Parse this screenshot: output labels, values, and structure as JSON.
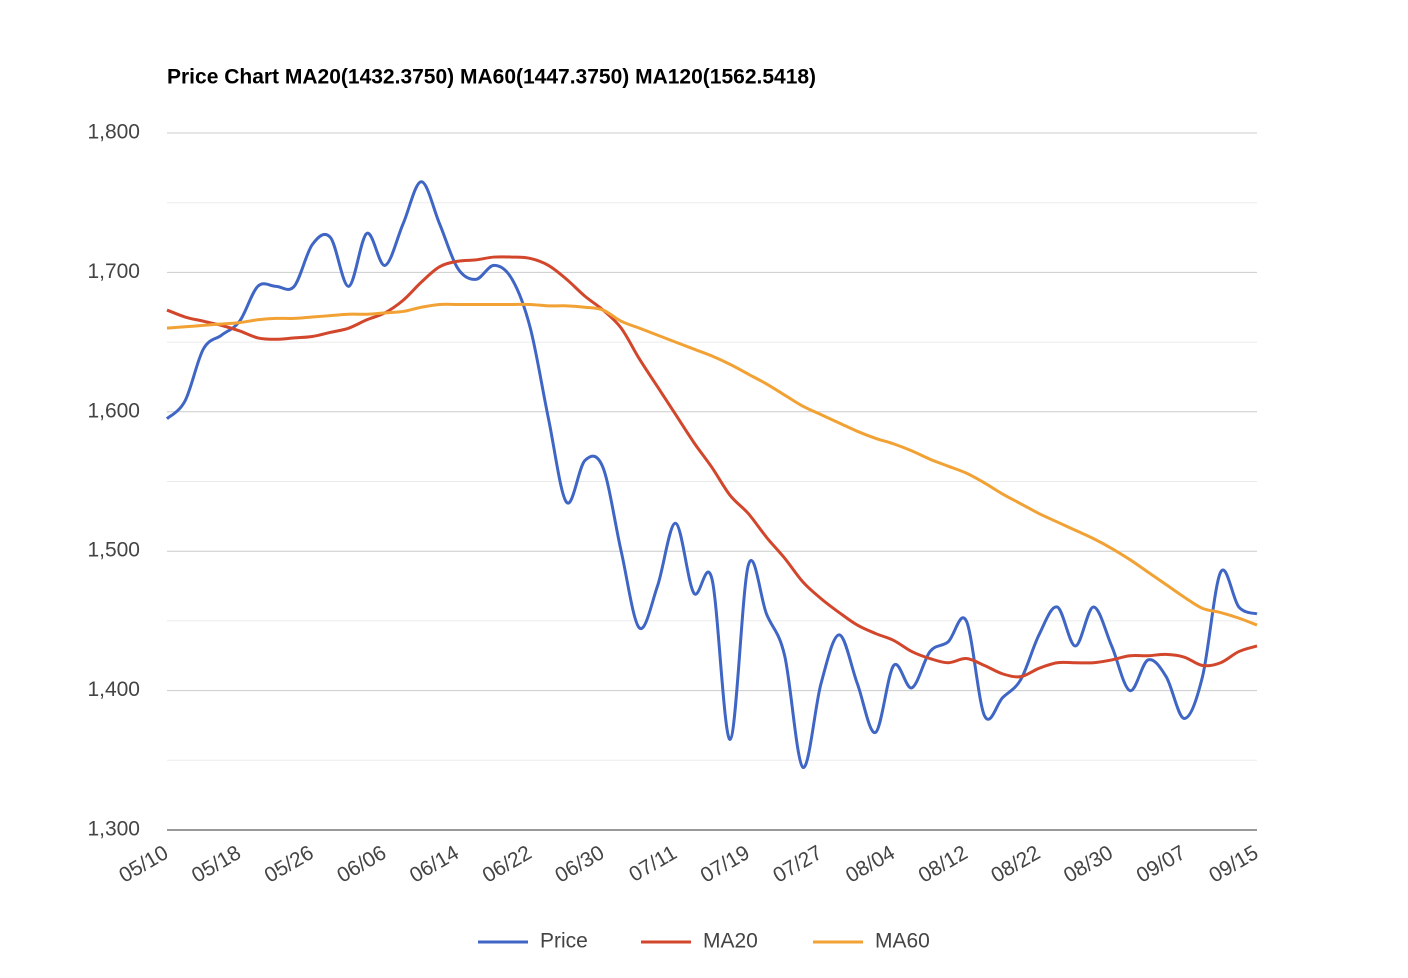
{
  "chart_data": {
    "type": "line",
    "title": "Price Chart MA20(1432.3750) MA60(1447.3750) MA120(1562.5418)",
    "categories": [
      "05/10",
      null,
      null,
      null,
      "05/18",
      null,
      null,
      null,
      "05/26",
      null,
      null,
      null,
      "06/06",
      null,
      null,
      null,
      "06/14",
      null,
      null,
      null,
      "06/22",
      null,
      null,
      null,
      "06/30",
      null,
      null,
      null,
      "07/11",
      null,
      null,
      null,
      "07/19",
      null,
      null,
      null,
      "07/27",
      null,
      null,
      null,
      "08/04",
      null,
      null,
      null,
      "08/12",
      null,
      null,
      null,
      "08/22",
      null,
      null,
      null,
      "08/30",
      null,
      null,
      null,
      "09/07",
      null,
      null,
      null,
      "09/15"
    ],
    "series": [
      {
        "name": "Price",
        "color": "#3f66c4",
        "values": [
          1595,
          1608,
          1645,
          1655,
          1665,
          1690,
          1690,
          1690,
          1720,
          1725,
          1690,
          1728,
          1705,
          1735,
          1765,
          1735,
          1703,
          1695,
          1705,
          1695,
          1660,
          1595,
          1535,
          1565,
          1560,
          1500,
          1445,
          1475,
          1520,
          1470,
          1480,
          1365,
          1490,
          1455,
          1425,
          1345,
          1405,
          1440,
          1405,
          1370,
          1418,
          1402,
          1428,
          1435,
          1450,
          1382,
          1395,
          1408,
          1440,
          1460,
          1432,
          1460,
          1432,
          1400,
          1422,
          1410,
          1380,
          1410,
          1485,
          1460,
          1455
        ]
      },
      {
        "name": "MA20",
        "color": "#d2462c",
        "values": [
          1673,
          1668,
          1665,
          1662,
          1658,
          1653,
          1652,
          1653,
          1654,
          1657,
          1660,
          1666,
          1671,
          1680,
          1693,
          1704,
          1708,
          1709,
          1711,
          1711,
          1710,
          1705,
          1695,
          1683,
          1673,
          1660,
          1638,
          1618,
          1598,
          1578,
          1560,
          1540,
          1527,
          1510,
          1495,
          1478,
          1466,
          1456,
          1447,
          1441,
          1436,
          1428,
          1423,
          1420,
          1423,
          1418,
          1412,
          1410,
          1416,
          1420,
          1420,
          1420,
          1422,
          1425,
          1425,
          1426,
          1424,
          1418,
          1420,
          1428,
          1432
        ]
      },
      {
        "name": "MA60",
        "color": "#f2a234",
        "values": [
          1660,
          1661,
          1662,
          1663,
          1664,
          1666,
          1667,
          1667,
          1668,
          1669,
          1670,
          1670,
          1671,
          1672,
          1675,
          1677,
          1677,
          1677,
          1677,
          1677,
          1677,
          1676,
          1676,
          1675,
          1673,
          1665,
          1660,
          1655,
          1650,
          1645,
          1640,
          1634,
          1627,
          1620,
          1612,
          1604,
          1598,
          1592,
          1586,
          1581,
          1577,
          1572,
          1566,
          1561,
          1556,
          1549,
          1541,
          1534,
          1527,
          1521,
          1515,
          1509,
          1502,
          1494,
          1485,
          1476,
          1467,
          1459,
          1456,
          1452,
          1447
        ]
      }
    ],
    "ylim": [
      1300,
      1800
    ],
    "yticks": [
      {
        "value": 1300,
        "label": "1,300"
      },
      {
        "value": 1400,
        "label": "1,400"
      },
      {
        "value": 1500,
        "label": "1,500"
      },
      {
        "value": 1600,
        "label": "1,600"
      },
      {
        "value": 1700,
        "label": "1,700"
      },
      {
        "value": 1800,
        "label": "1,800"
      }
    ],
    "yminor": [
      1350,
      1450,
      1550,
      1650,
      1750
    ],
    "grid": true,
    "legend": "bottom"
  }
}
